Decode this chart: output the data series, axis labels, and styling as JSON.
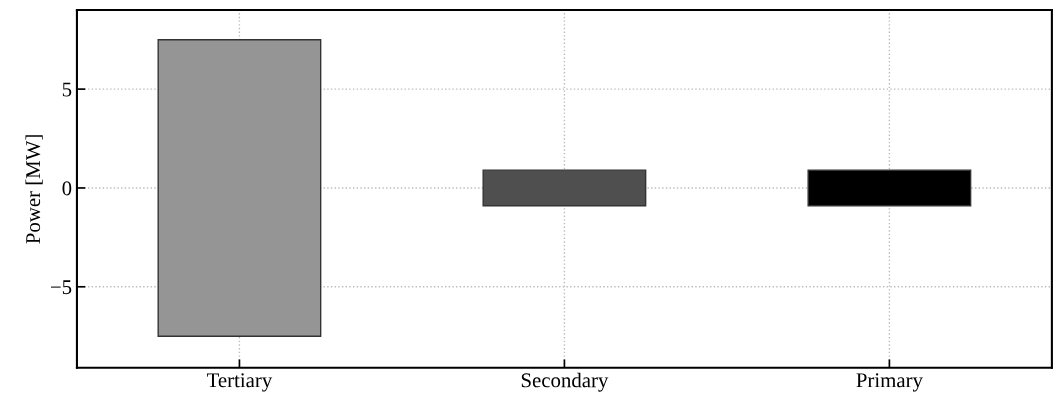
{
  "chart_data": {
    "type": "bar",
    "ylabel": "Power [MW]",
    "categories": [
      "Tertiary",
      "Secondary",
      "Primary"
    ],
    "base": [
      -7.5,
      -0.9,
      -0.9
    ],
    "values": [
      15,
      1.8,
      1.8
    ],
    "colors": [
      "#959595",
      "#4f4f4f",
      "#000000"
    ],
    "ylim": [
      -9.1,
      9
    ],
    "yticks": [
      {
        "value": -5,
        "label": "−5"
      },
      0,
      5
    ],
    "grid": true
  }
}
